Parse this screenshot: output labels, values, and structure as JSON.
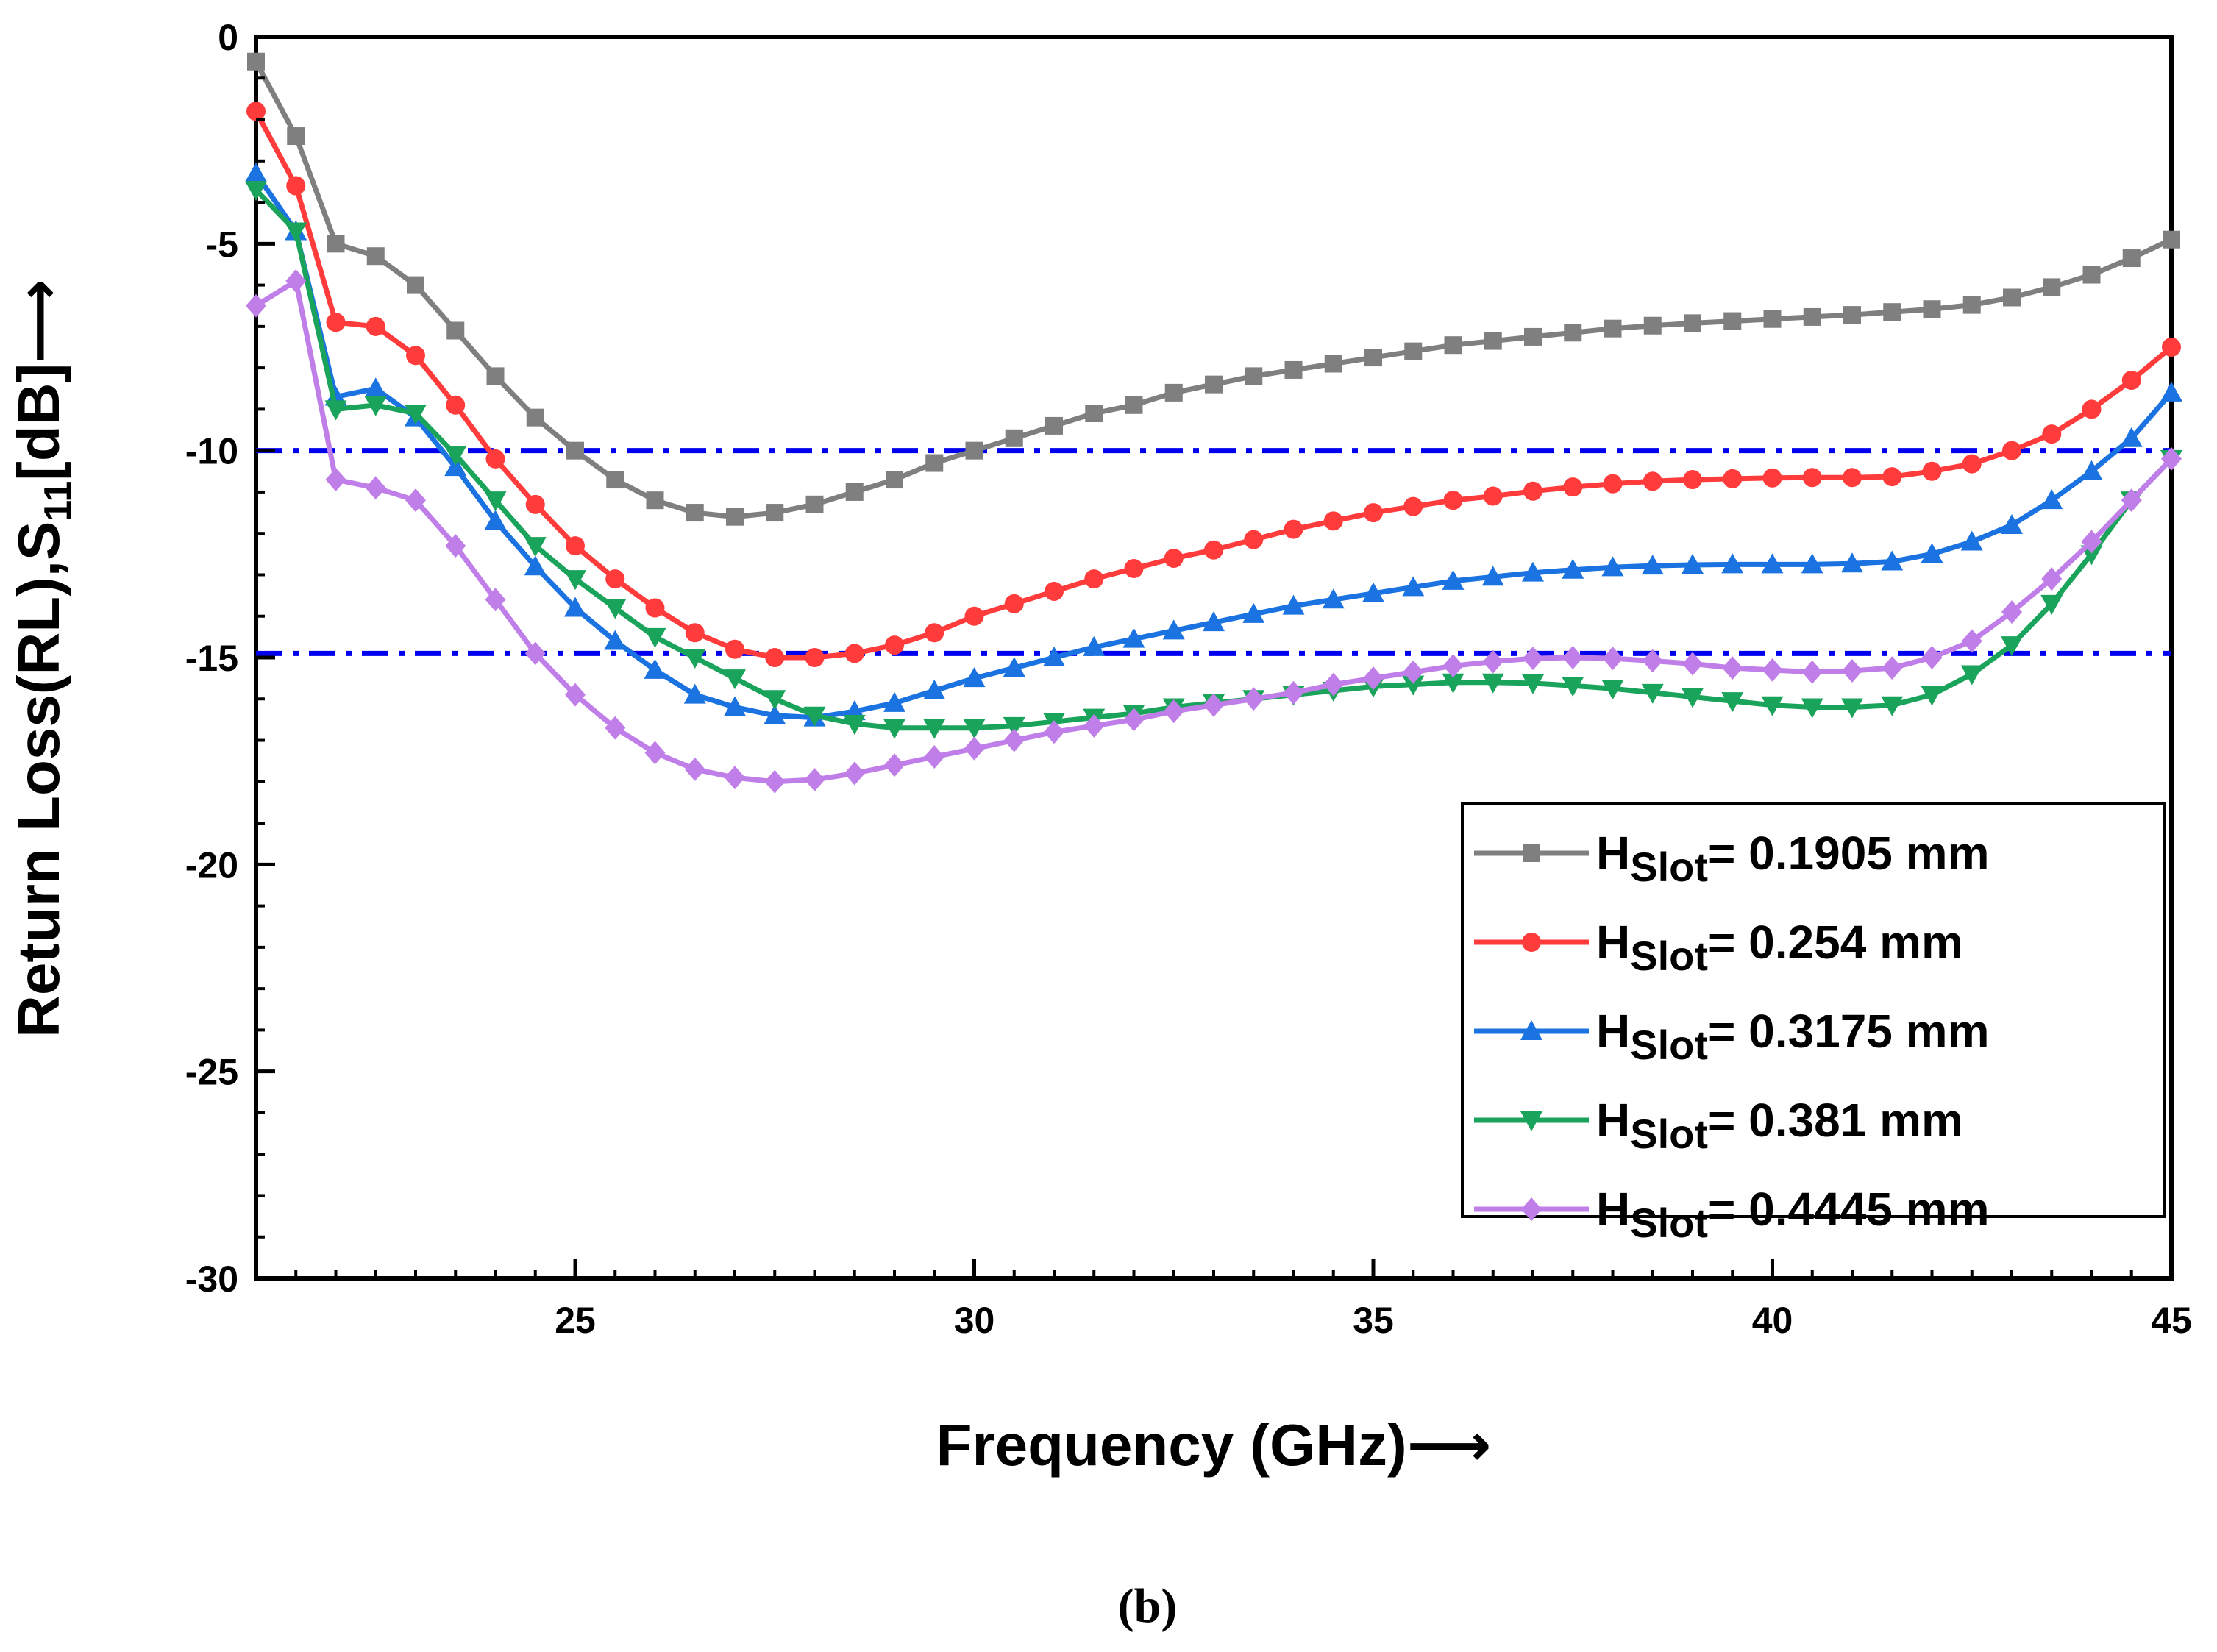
{
  "chart_data": {
    "type": "line",
    "title": "",
    "panel_label": "(b)",
    "xlabel": "Frequency (GHz)⟶",
    "ylabel_parts": {
      "main": "Return Loss(RL),S",
      "subscript": "11",
      "suffix": "[dB]⟶"
    },
    "xlim": [
      21,
      45
    ],
    "ylim": [
      -30,
      0
    ],
    "xticks": [
      25,
      30,
      35,
      40,
      45
    ],
    "xtick_labels": [
      "25",
      "30",
      "35",
      "40",
      "45"
    ],
    "yticks": [
      0,
      -5,
      -10,
      -15,
      -20,
      -25,
      -30
    ],
    "ytick_labels": [
      "0",
      "-5",
      "-10",
      "-15",
      "-20",
      "-25",
      "-30"
    ],
    "grid": false,
    "legend_position": "bottom-right",
    "reference_lines": [
      {
        "y": -10,
        "color": "#0000ee",
        "style": "dash-dot"
      },
      {
        "y": -14.9,
        "color": "#0000ee",
        "style": "dash-dot"
      }
    ],
    "x": [
      21,
      21.5,
      22,
      22.5,
      23,
      23.5,
      24,
      24.5,
      25,
      25.5,
      26,
      26.5,
      27,
      27.5,
      28,
      28.5,
      29,
      29.5,
      30,
      30.5,
      31,
      31.5,
      32,
      32.5,
      33,
      33.5,
      34,
      34.5,
      35,
      35.5,
      36,
      36.5,
      37,
      37.5,
      38,
      38.5,
      39,
      39.5,
      40,
      40.5,
      41,
      41.5,
      42,
      42.5,
      43,
      43.5,
      44,
      44.5,
      45
    ],
    "series": [
      {
        "name": "0.1905 mm",
        "legend_prefix": "H",
        "legend_sub": "Slot",
        "legend_value": "= 0.1905 mm",
        "color": "#7f7f7f",
        "marker": "square",
        "values": [
          -0.6,
          -2.4,
          -5.0,
          -5.3,
          -6.0,
          -7.1,
          -8.2,
          -9.2,
          -10.0,
          -10.7,
          -11.2,
          -11.5,
          -11.6,
          -11.5,
          -11.3,
          -11.0,
          -10.7,
          -10.3,
          -10.0,
          -9.7,
          -9.4,
          -9.1,
          -8.9,
          -8.6,
          -8.4,
          -8.2,
          -8.05,
          -7.9,
          -7.75,
          -7.6,
          -7.45,
          -7.35,
          -7.25,
          -7.15,
          -7.05,
          -6.98,
          -6.92,
          -6.87,
          -6.82,
          -6.77,
          -6.72,
          -6.65,
          -6.58,
          -6.48,
          -6.3,
          -6.05,
          -5.75,
          -5.35,
          -4.9
        ]
      },
      {
        "name": "0.254 mm",
        "legend_prefix": "H",
        "legend_sub": "Slot",
        "legend_value": "= 0.254 mm",
        "color": "#ff3b3b",
        "marker": "circle",
        "values": [
          -1.8,
          -3.6,
          -6.9,
          -7.0,
          -7.7,
          -8.9,
          -10.2,
          -11.3,
          -12.3,
          -13.1,
          -13.8,
          -14.4,
          -14.8,
          -15.0,
          -15.0,
          -14.9,
          -14.7,
          -14.4,
          -14.0,
          -13.7,
          -13.4,
          -13.1,
          -12.85,
          -12.6,
          -12.4,
          -12.15,
          -11.9,
          -11.7,
          -11.5,
          -11.35,
          -11.2,
          -11.1,
          -10.98,
          -10.88,
          -10.8,
          -10.74,
          -10.7,
          -10.68,
          -10.66,
          -10.65,
          -10.65,
          -10.63,
          -10.5,
          -10.32,
          -10.0,
          -9.6,
          -9.0,
          -8.3,
          -7.5
        ]
      },
      {
        "name": "0.3175 mm",
        "legend_prefix": "H",
        "legend_sub": "Slot",
        "legend_value": "= 0.3175 mm",
        "color": "#1a73e0",
        "marker": "triangle-up",
        "values": [
          -3.3,
          -4.7,
          -8.7,
          -8.5,
          -9.2,
          -10.4,
          -11.7,
          -12.8,
          -13.8,
          -14.6,
          -15.3,
          -15.9,
          -16.2,
          -16.4,
          -16.45,
          -16.3,
          -16.1,
          -15.8,
          -15.5,
          -15.25,
          -15.0,
          -14.75,
          -14.55,
          -14.35,
          -14.15,
          -13.95,
          -13.75,
          -13.6,
          -13.45,
          -13.3,
          -13.15,
          -13.05,
          -12.95,
          -12.88,
          -12.82,
          -12.78,
          -12.76,
          -12.75,
          -12.75,
          -12.75,
          -12.73,
          -12.68,
          -12.5,
          -12.2,
          -11.8,
          -11.2,
          -10.5,
          -9.7,
          -8.6
        ]
      },
      {
        "name": "0.381 mm",
        "legend_prefix": "H",
        "legend_sub": "Slot",
        "legend_value": "= 0.381 mm",
        "color": "#1aa35a",
        "marker": "triangle-down",
        "values": [
          -3.7,
          -4.7,
          -9.0,
          -8.9,
          -9.1,
          -10.1,
          -11.2,
          -12.3,
          -13.1,
          -13.8,
          -14.5,
          -15.0,
          -15.5,
          -16.0,
          -16.4,
          -16.6,
          -16.7,
          -16.7,
          -16.7,
          -16.65,
          -16.55,
          -16.45,
          -16.35,
          -16.2,
          -16.1,
          -16.0,
          -15.9,
          -15.8,
          -15.7,
          -15.65,
          -15.6,
          -15.6,
          -15.62,
          -15.68,
          -15.75,
          -15.85,
          -15.95,
          -16.05,
          -16.15,
          -16.2,
          -16.2,
          -16.15,
          -15.9,
          -15.4,
          -14.7,
          -13.7,
          -12.5,
          -11.2,
          -10.2
        ]
      },
      {
        "name": "0.4445 mm",
        "legend_prefix": "H",
        "legend_sub": "Slot",
        "legend_value": "= 0.4445 mm",
        "color": "#c07ee8",
        "marker": "diamond",
        "values": [
          -6.5,
          -5.9,
          -10.7,
          -10.9,
          -11.2,
          -12.3,
          -13.6,
          -14.9,
          -15.9,
          -16.7,
          -17.3,
          -17.7,
          -17.9,
          -18.0,
          -17.95,
          -17.8,
          -17.6,
          -17.4,
          -17.2,
          -17.0,
          -16.8,
          -16.65,
          -16.5,
          -16.3,
          -16.15,
          -16.0,
          -15.85,
          -15.65,
          -15.5,
          -15.35,
          -15.2,
          -15.1,
          -15.02,
          -15.0,
          -15.02,
          -15.08,
          -15.15,
          -15.25,
          -15.3,
          -15.35,
          -15.32,
          -15.25,
          -15.0,
          -14.6,
          -13.9,
          -13.1,
          -12.2,
          -11.2,
          -10.2
        ]
      }
    ]
  }
}
